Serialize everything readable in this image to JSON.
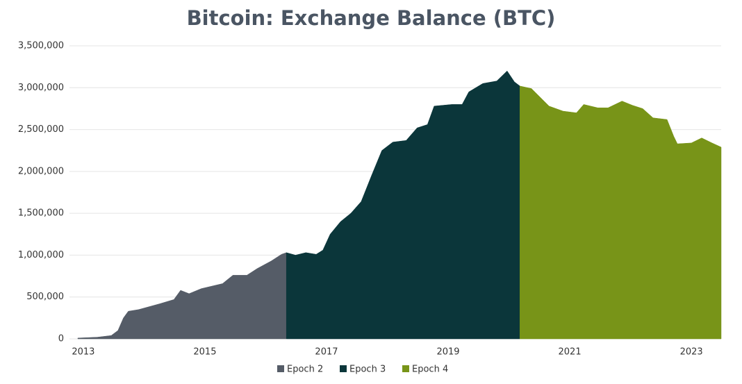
{
  "chart_data": {
    "type": "area",
    "title": "Bitcoin: Exchange Balance (BTC)",
    "xlim": [
      2012.91,
      2023.49
    ],
    "xticks": [
      2013,
      2015,
      2017,
      2019,
      2021,
      2023
    ],
    "ylim": [
      0,
      3500000
    ],
    "yticks": [
      0,
      {
        "value": 500000,
        "label": "500,000"
      },
      {
        "value": 1000000,
        "label": "1,000,000"
      },
      {
        "value": 1500000,
        "label": "1,500,000"
      },
      {
        "value": 2000000,
        "label": "2,000,000"
      },
      {
        "value": 2500000,
        "label": "2,500,000"
      },
      {
        "value": 3000000,
        "label": "3,000,000"
      },
      {
        "value": 3500000,
        "label": "3,500,000"
      }
    ],
    "grid": true,
    "series": [
      {
        "name": "Epoch 2",
        "color": "#555c67",
        "x": [
          2012.91,
          2013.23,
          2013.46,
          2013.57,
          2013.66,
          2013.74,
          2013.91,
          2014.26,
          2014.49,
          2014.6,
          2014.74,
          2014.94,
          2015.29,
          2015.46,
          2015.69,
          2015.86,
          2016.09,
          2016.26,
          2016.34
        ],
        "values": [
          10000,
          20000,
          40000,
          100000,
          250000,
          330000,
          350000,
          420000,
          470000,
          580000,
          540000,
          600000,
          660000,
          760000,
          760000,
          840000,
          930000,
          1010000,
          1030000
        ]
      },
      {
        "name": "Epoch 3",
        "color": "#0b363a",
        "x": [
          2016.34,
          2016.49,
          2016.66,
          2016.83,
          2016.94,
          2017.06,
          2017.23,
          2017.4,
          2017.57,
          2017.74,
          2017.91,
          2018.09,
          2018.31,
          2018.49,
          2018.66,
          2018.77,
          2019.06,
          2019.23,
          2019.34,
          2019.57,
          2019.8,
          2019.97,
          2020.09,
          2020.18
        ],
        "values": [
          1030000,
          1000000,
          1030000,
          1010000,
          1060000,
          1250000,
          1400000,
          1500000,
          1640000,
          1950000,
          2250000,
          2350000,
          2370000,
          2520000,
          2560000,
          2780000,
          2800000,
          2800000,
          2950000,
          3050000,
          3080000,
          3200000,
          3070000,
          3020000
        ]
      },
      {
        "name": "Epoch 4",
        "color": "#789418",
        "x": [
          2020.18,
          2020.37,
          2020.66,
          2020.89,
          2021.11,
          2021.23,
          2021.46,
          2021.63,
          2021.86,
          2022.03,
          2022.2,
          2022.37,
          2022.6,
          2022.71,
          2022.77,
          2023.0,
          2023.17,
          2023.34,
          2023.49
        ],
        "values": [
          3020000,
          2990000,
          2780000,
          2720000,
          2700000,
          2800000,
          2760000,
          2760000,
          2840000,
          2790000,
          2750000,
          2640000,
          2620000,
          2420000,
          2330000,
          2340000,
          2400000,
          2340000,
          2290000
        ]
      }
    ]
  }
}
